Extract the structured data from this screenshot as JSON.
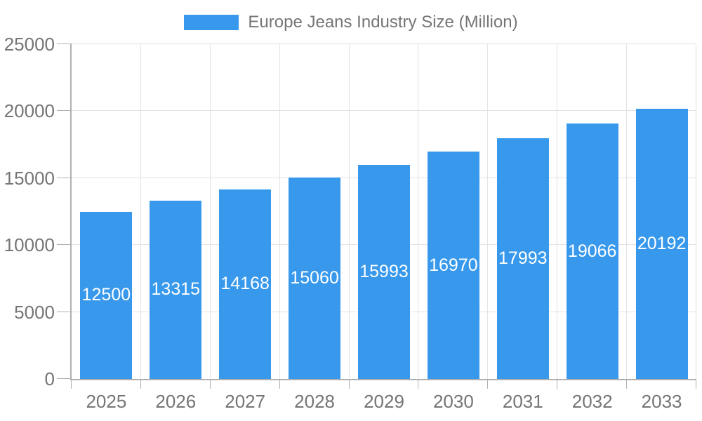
{
  "chart_data": {
    "type": "bar",
    "title": "Europe Jeans Industry Size (Million)",
    "categories": [
      "2025",
      "2026",
      "2027",
      "2028",
      "2029",
      "2030",
      "2031",
      "2032",
      "2033"
    ],
    "values": [
      12500,
      13315,
      14168,
      15060,
      15993,
      16970,
      17993,
      19066,
      20192
    ],
    "series": [
      {
        "name": "Europe Jeans Industry Size (Million)",
        "values": [
          12500,
          13315,
          14168,
          15060,
          15993,
          16970,
          17993,
          19066,
          20192
        ]
      }
    ],
    "xlabel": "",
    "ylabel": "",
    "ylim": [
      0,
      25000
    ],
    "yticks": [
      0,
      5000,
      10000,
      15000,
      20000,
      25000
    ],
    "grid": true,
    "legend_position": "top-center",
    "value_labels_position": "inside-center"
  },
  "colors": {
    "bar": "#3899EC",
    "grid": "#e3e3e3",
    "axis": "#b0b0b0",
    "tick_text": "#757575",
    "legend_text": "#757575",
    "value_label_text": "#ffffff",
    "background": "#ffffff"
  }
}
